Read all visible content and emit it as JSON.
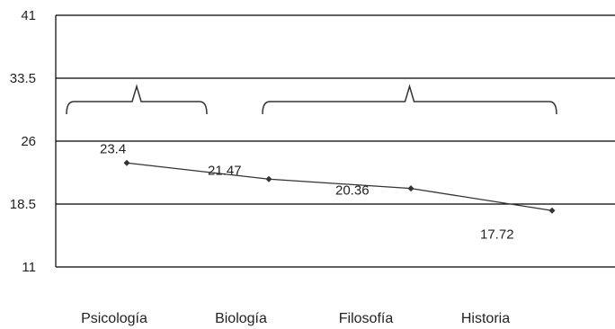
{
  "chart_data": {
    "type": "line",
    "categories": [
      "Psicología",
      "Biología",
      "Filosofía",
      "Historia"
    ],
    "values": [
      23.4,
      21.47,
      20.36,
      17.72
    ],
    "value_labels": [
      "23.4",
      "21.47",
      "20.36",
      "17.72"
    ],
    "yticks": [
      "41",
      "33.5",
      "26",
      "18.5",
      "11"
    ],
    "ylim": [
      11,
      41
    ],
    "grid": true,
    "legend": "none",
    "brackets": [
      {
        "from_category": "Psicología",
        "to_category": "Psicología"
      },
      {
        "from_category": "Biología",
        "to_category": "Historia"
      }
    ],
    "colors": {
      "line": "#333333",
      "grid": "#000000",
      "bracket": "#333333"
    }
  }
}
